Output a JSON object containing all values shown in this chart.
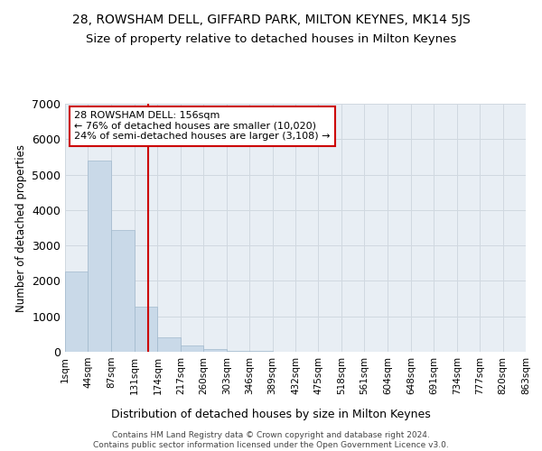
{
  "title": "28, ROWSHAM DELL, GIFFARD PARK, MILTON KEYNES, MK14 5JS",
  "subtitle": "Size of property relative to detached houses in Milton Keynes",
  "xlabel": "Distribution of detached houses by size in Milton Keynes",
  "ylabel": "Number of detached properties",
  "footer_line1": "Contains HM Land Registry data © Crown copyright and database right 2024.",
  "footer_line2": "Contains public sector information licensed under the Open Government Licence v3.0.",
  "annotation_line1": "28 ROWSHAM DELL: 156sqm",
  "annotation_line2": "← 76% of detached houses are smaller (10,020)",
  "annotation_line3": "24% of semi-detached houses are larger (3,108) →",
  "property_size": 156,
  "bar_color": "#c9d9e8",
  "bar_edge_color": "#a0b8cc",
  "vline_color": "#cc0000",
  "annotation_box_color": "#cc0000",
  "grid_color": "#d0d8e0",
  "background_color": "#e8eef4",
  "bin_edges": [
    1,
    44,
    87,
    131,
    174,
    217,
    260,
    303,
    346,
    389,
    432,
    475,
    518,
    561,
    604,
    648,
    691,
    734,
    777,
    820,
    863
  ],
  "bar_heights": [
    2270,
    5390,
    3440,
    1280,
    410,
    170,
    80,
    35,
    18,
    10,
    8,
    5,
    4,
    3,
    2,
    2,
    1,
    1,
    1,
    1
  ],
  "ylim": [
    0,
    7000
  ],
  "yticks": [
    0,
    1000,
    2000,
    3000,
    4000,
    5000,
    6000,
    7000
  ],
  "title_fontsize": 10,
  "subtitle_fontsize": 9.5,
  "tick_label_fontsize": 7.5,
  "ylabel_fontsize": 8.5,
  "xlabel_fontsize": 9,
  "footer_fontsize": 6.5
}
